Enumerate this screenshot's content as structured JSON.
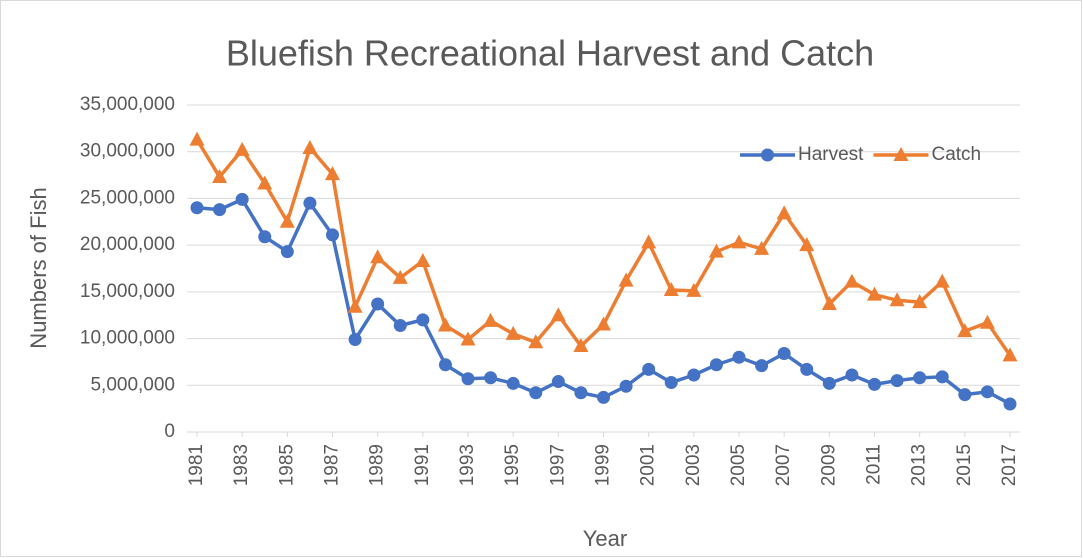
{
  "chart_data": {
    "type": "line",
    "title": "Bluefish Recreational Harvest and Catch",
    "x_label": "Year",
    "y_label": "Numbers of Fish",
    "x": [
      1981,
      1982,
      1983,
      1984,
      1985,
      1986,
      1987,
      1988,
      1989,
      1990,
      1991,
      1992,
      1993,
      1994,
      1995,
      1996,
      1997,
      1998,
      1999,
      2000,
      2001,
      2002,
      2003,
      2004,
      2005,
      2006,
      2007,
      2008,
      2009,
      2010,
      2011,
      2012,
      2013,
      2014,
      2015,
      2016,
      2017
    ],
    "xlim": [
      1981,
      2017
    ],
    "xticks": [
      1981,
      1983,
      1985,
      1987,
      1989,
      1991,
      1993,
      1995,
      1997,
      1999,
      2001,
      2003,
      2005,
      2007,
      2009,
      2011,
      2013,
      2015,
      2017
    ],
    "ylim": [
      0,
      35000000
    ],
    "yticks": [
      0,
      {
        "value": 5000000,
        "label": "5,000,000"
      },
      {
        "value": 10000000,
        "label": "10,000,000"
      },
      {
        "value": 15000000,
        "label": "15,000,000"
      },
      {
        "value": 20000000,
        "label": "20,000,000"
      },
      {
        "value": 25000000,
        "label": "25,000,000"
      },
      {
        "value": 30000000,
        "label": "30,000,000"
      },
      {
        "value": 35000000,
        "label": "35,000,000"
      }
    ],
    "grid": true,
    "legend": "upper right",
    "series": [
      {
        "name": "Harvest",
        "color": "#4472c4",
        "marker": "circle",
        "values": [
          24000000,
          23800000,
          24900000,
          20900000,
          19300000,
          24500000,
          21100000,
          9900000,
          13700000,
          11400000,
          12000000,
          7200000,
          5700000,
          5800000,
          5200000,
          4200000,
          5400000,
          4200000,
          3700000,
          4900000,
          6700000,
          5300000,
          6100000,
          7200000,
          8000000,
          7100000,
          8400000,
          6700000,
          5200000,
          6100000,
          5100000,
          5500000,
          5800000,
          5900000,
          4000000,
          4300000,
          3000000
        ]
      },
      {
        "name": "Catch",
        "color": "#ed7d31",
        "marker": "triangle",
        "values": [
          31300000,
          27300000,
          30200000,
          26600000,
          22500000,
          30400000,
          27600000,
          13400000,
          18700000,
          16500000,
          18300000,
          11400000,
          9900000,
          11900000,
          10500000,
          9600000,
          12500000,
          9200000,
          11500000,
          16200000,
          20300000,
          15200000,
          15100000,
          19300000,
          20300000,
          19600000,
          23400000,
          20000000,
          13700000,
          16100000,
          14700000,
          14100000,
          13900000,
          16100000,
          10800000,
          11700000,
          8200000
        ]
      }
    ]
  }
}
